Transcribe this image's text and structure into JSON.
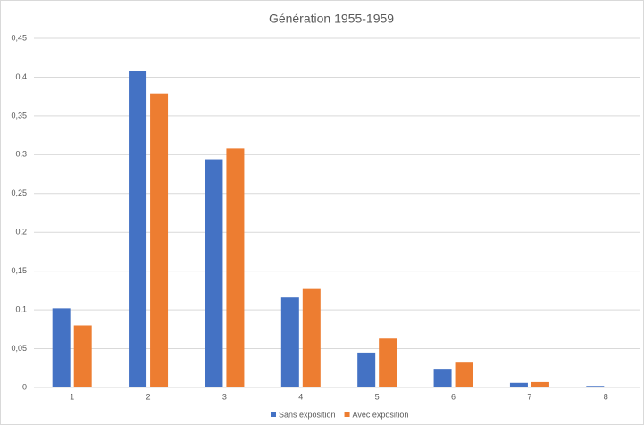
{
  "chart_data": {
    "type": "bar",
    "title": "Génération 1955-1959",
    "categories": [
      "1",
      "2",
      "3",
      "4",
      "5",
      "6",
      "7",
      "8"
    ],
    "series": [
      {
        "name": "Sans exposition",
        "color": "#4472c4",
        "values": [
          0.102,
          0.408,
          0.294,
          0.116,
          0.045,
          0.024,
          0.006,
          0.002
        ]
      },
      {
        "name": "Avec exposition",
        "color": "#ed7d31",
        "values": [
          0.08,
          0.379,
          0.308,
          0.127,
          0.063,
          0.032,
          0.007,
          0.001
        ]
      }
    ],
    "ylim": [
      0,
      0.45
    ],
    "yticks": [
      0,
      {
        "value": 0.05,
        "label": "0,05"
      },
      {
        "value": 0.1,
        "label": "0,1"
      },
      {
        "value": 0.15,
        "label": "0,15"
      },
      {
        "value": 0.2,
        "label": "0,2"
      },
      {
        "value": 0.25,
        "label": "0,25"
      },
      {
        "value": 0.3,
        "label": "0,3"
      },
      {
        "value": 0.35,
        "label": "0,35"
      },
      {
        "value": 0.4,
        "label": "0,4"
      },
      {
        "value": 0.45,
        "label": "0,45"
      }
    ],
    "grid": true,
    "legend": "bottom"
  }
}
